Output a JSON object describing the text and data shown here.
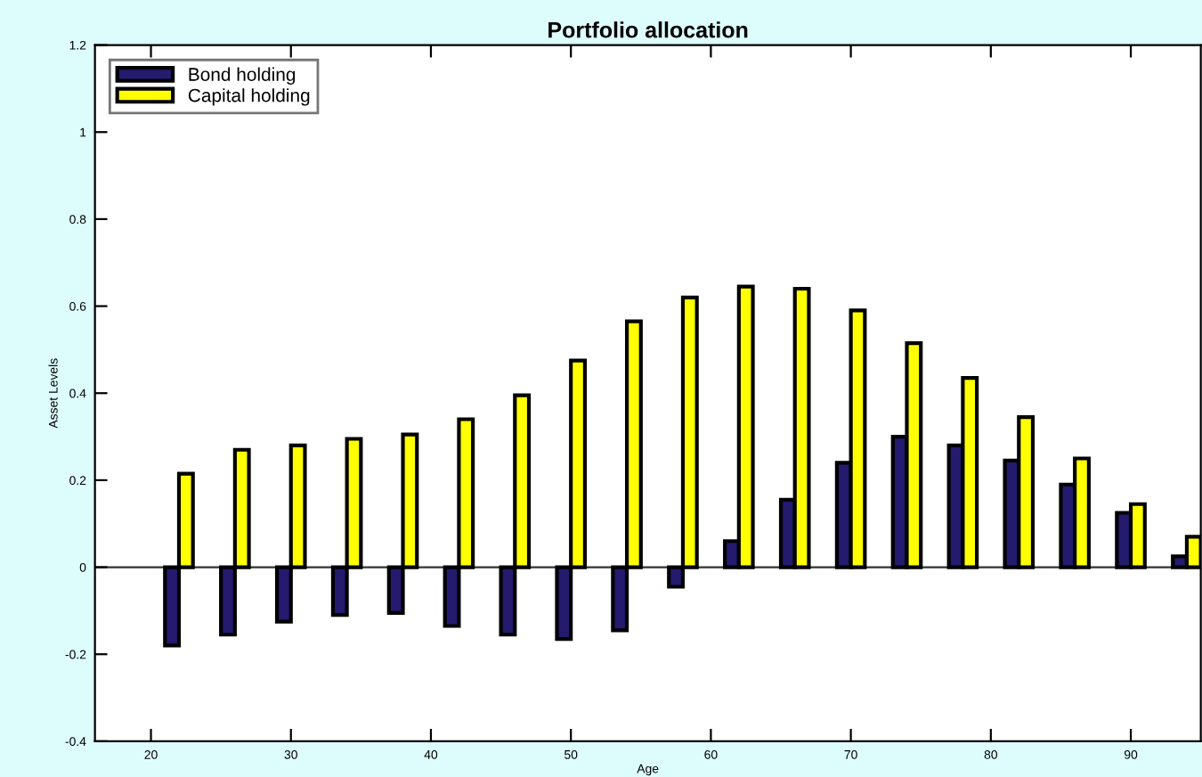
{
  "chart_data": {
    "type": "bar",
    "title": "Portfolio allocation",
    "xlabel": "Age",
    "ylabel": "Asset Levels",
    "x": [
      22,
      26,
      30,
      34,
      38,
      42,
      46,
      50,
      54,
      58,
      62,
      66,
      70,
      74,
      78,
      82,
      86,
      90,
      94
    ],
    "series": [
      {
        "name": "Bond holding",
        "color": "#241a6e",
        "values": [
          -0.18,
          -0.155,
          -0.125,
          -0.11,
          -0.105,
          -0.135,
          -0.155,
          -0.165,
          -0.145,
          -0.045,
          0.06,
          0.155,
          0.24,
          0.3,
          0.28,
          0.245,
          0.19,
          0.125,
          0.025
        ]
      },
      {
        "name": "Capital holding",
        "color": "#ffff00",
        "values": [
          0.215,
          0.27,
          0.28,
          0.295,
          0.305,
          0.34,
          0.395,
          0.475,
          0.565,
          0.62,
          0.645,
          0.64,
          0.59,
          0.515,
          0.435,
          0.345,
          0.25,
          0.145,
          0.07
        ]
      }
    ],
    "xlim": [
      16,
      95
    ],
    "xticks": [
      20,
      30,
      40,
      50,
      60,
      70,
      80,
      90
    ],
    "ylim": [
      -0.4,
      1.2
    ],
    "yticks": [
      -0.4,
      -0.2,
      0,
      0.2,
      0.4,
      0.6,
      0.8,
      1,
      1.2
    ],
    "ref_lines": [
      {
        "axis": "y",
        "value": 0,
        "color": "#333333"
      }
    ],
    "legend": "top left"
  }
}
